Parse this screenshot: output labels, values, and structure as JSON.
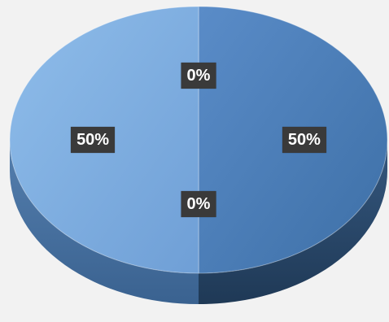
{
  "chart_data": {
    "type": "pie",
    "style": "3d",
    "categories": [
      "",
      "",
      "",
      ""
    ],
    "values": [
      50,
      0,
      50,
      0
    ],
    "data_labels": [
      "50%",
      "0%",
      "50%",
      "0%"
    ],
    "colors": {
      "slice_right_top": "#4f81bd",
      "slice_right_side": "#2f4f73",
      "slice_left_top": "#7eaedf",
      "slice_left_side": "#4f78a6",
      "background": "#f2f2f2",
      "label_bg": "#3a3a3a",
      "label_text": "#ffffff"
    },
    "title": "",
    "legend": "none"
  }
}
